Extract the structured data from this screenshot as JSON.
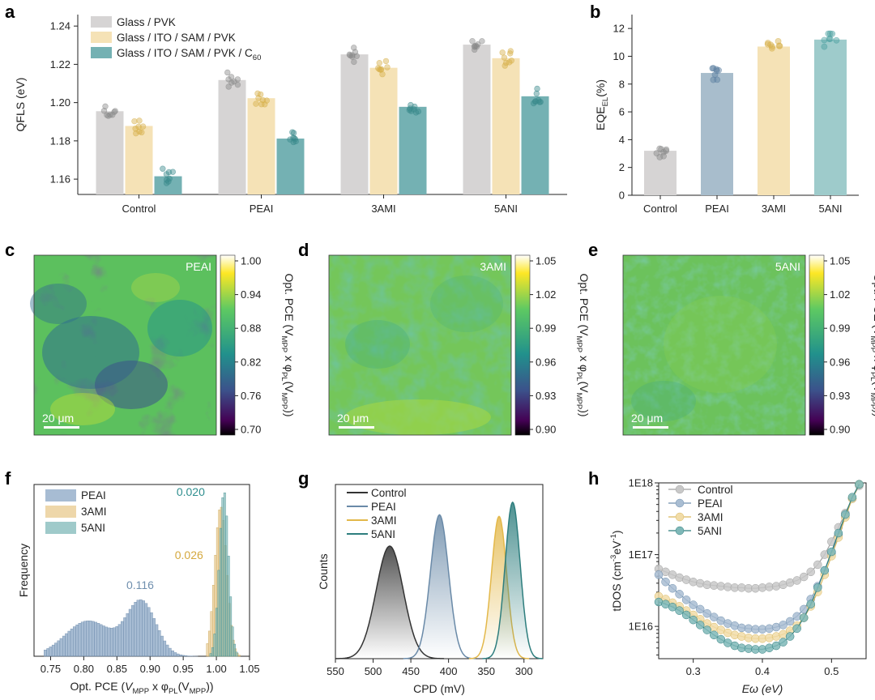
{
  "panel_letters": [
    "a",
    "b",
    "c",
    "d",
    "e",
    "f",
    "g",
    "h"
  ],
  "chart_data": [
    {
      "id": "a",
      "type": "bar",
      "categories": [
        "Control",
        "PEAI",
        "3AMI",
        "5ANI"
      ],
      "series": [
        {
          "name": "Glass / PVK",
          "values": [
            1.1955,
            1.2118,
            1.2252,
            1.2303
          ]
        },
        {
          "name": "Glass / ITO / SAM / PVK",
          "values": [
            1.1878,
            1.2023,
            1.2182,
            1.2232
          ]
        },
        {
          "name": "Glass / ITO / SAM / PVK / C",
          "name_sub": "60",
          "values": [
            1.1615,
            1.1812,
            1.1978,
            1.2033
          ]
        }
      ],
      "ylabel": "QFLS (eV)",
      "ylim": [
        1.152,
        1.246
      ],
      "yticks": [
        "1.16",
        "1.18",
        "1.20",
        "1.22",
        "1.24"
      ],
      "colors": [
        "#d6d4d4",
        "#f5e2b6",
        "#74b1b3"
      ],
      "dot_colors": [
        "#8a8a8a",
        "#d6b04a",
        "#3a8a8c"
      ],
      "legend_position": "top-left"
    },
    {
      "id": "b",
      "type": "bar",
      "categories": [
        "Control",
        "PEAI",
        "3AMI",
        "5ANI"
      ],
      "values": [
        3.2,
        8.8,
        10.7,
        11.2
      ],
      "ylabel": "EQE",
      "ylabel_sub": "EL",
      "ylabel_suffix": "(%)",
      "ylim": [
        0,
        13
      ],
      "yticks": [
        "0",
        "2",
        "4",
        "6",
        "8",
        "10",
        "12"
      ],
      "colors": [
        "#d6d4d4",
        "#a8bdcc",
        "#f5e2b6",
        "#9ecbcb"
      ],
      "dot_colors": [
        "#8a8a8a",
        "#5a7fa0",
        "#d6b04a",
        "#4aa0a0"
      ]
    },
    {
      "id": "c",
      "type": "heatmap",
      "label": "PEAI",
      "scalebar": "20 μm",
      "colorbar_ticks": [
        "1.00",
        "0.94",
        "0.88",
        "0.82",
        "0.76",
        "0.70"
      ],
      "colorbar_label": "Opt. PCE (V",
      "colorbar_label_sub1": "MPP",
      "colorbar_label_mid": " x φ",
      "colorbar_label_sub2": "PL",
      "colorbar_label_mid2": "(V",
      "colorbar_label_sub3": "MPP",
      "colorbar_label_end": "))"
    },
    {
      "id": "d",
      "type": "heatmap",
      "label": "3AMI",
      "scalebar": "20 μm",
      "colorbar_ticks": [
        "1.05",
        "1.02",
        "0.99",
        "0.96",
        "0.93",
        "0.90"
      ],
      "colorbar_label": "Opt. PCE (V",
      "colorbar_label_sub1": "MPP",
      "colorbar_label_mid": " x φ",
      "colorbar_label_sub2": "PL",
      "colorbar_label_mid2": "(V",
      "colorbar_label_sub3": "MPP",
      "colorbar_label_end": "))"
    },
    {
      "id": "e",
      "type": "heatmap",
      "label": "5ANI",
      "scalebar": "20 μm",
      "colorbar_ticks": [
        "1.05",
        "1.02",
        "0.99",
        "0.96",
        "0.93",
        "0.90"
      ],
      "colorbar_label": "Opt. PCE (V",
      "colorbar_label_sub1": "MPP",
      "colorbar_label_mid": " x φ",
      "colorbar_label_sub2": "PL",
      "colorbar_label_mid2": "(V",
      "colorbar_label_sub3": "MPP",
      "colorbar_label_end": "))"
    },
    {
      "id": "f",
      "type": "bar",
      "xlabel_pre": "Opt. PCE (",
      "xlabel_v": "V",
      "xlabel_sub1": "MPP",
      "xlabel_mid": " x φ",
      "xlabel_sub2": "PL",
      "xlabel_mid2": "(V",
      "xlabel_sub3": "MPP",
      "xlabel_end": "))",
      "ylabel": "Frequency",
      "xlim": [
        0.725,
        1.05
      ],
      "xticks": [
        "0.75",
        "0.80",
        "0.85",
        "0.90",
        "0.95",
        "1.00",
        "1.05"
      ],
      "series": [
        {
          "name": "PEAI",
          "color": "#8aa6c4",
          "annotation": "0.116"
        },
        {
          "name": "3AMI",
          "color": "#e8c98e",
          "annotation": "0.026"
        },
        {
          "name": "5ANI",
          "color": "#7fb8b8",
          "annotation": "0.020"
        }
      ],
      "legend_position": "top-left"
    },
    {
      "id": "g",
      "type": "area",
      "xlabel": "CPD (mV)",
      "ylabel": "Counts",
      "xlim": [
        550,
        275
      ],
      "xticks": [
        "550",
        "500",
        "450",
        "400",
        "350",
        "300"
      ],
      "series": [
        {
          "name": "Control",
          "peak": 478,
          "sigma": 18,
          "height": 0.72,
          "color": "#333333"
        },
        {
          "name": "PEAI",
          "peak": 412,
          "sigma": 12,
          "height": 0.92,
          "color": "#6a8aa8"
        },
        {
          "name": "3AMI",
          "peak": 333,
          "sigma": 10,
          "height": 0.91,
          "color": "#e3b84a"
        },
        {
          "name": "5ANI",
          "peak": 315,
          "sigma": 10,
          "height": 1.0,
          "color": "#2e7e7e"
        }
      ],
      "legend_position": "top-left"
    },
    {
      "id": "h",
      "type": "scatter",
      "xlabel": "Eω (eV)",
      "ylabel": "tDOS (cm",
      "ylabel_sup1": "-3",
      "ylabel_mid": "eV",
      "ylabel_sup2": "-1",
      "ylabel_end": ")",
      "xlim": [
        0.25,
        0.55
      ],
      "ylim_log": [
        15.55,
        18.0
      ],
      "xticks": [
        "0.3",
        "0.4",
        "0.5"
      ],
      "yticks": [
        "1E18",
        "1E17",
        "1E16"
      ],
      "x": [
        0.25,
        0.26,
        0.27,
        0.28,
        0.29,
        0.3,
        0.31,
        0.32,
        0.33,
        0.34,
        0.35,
        0.36,
        0.37,
        0.38,
        0.39,
        0.4,
        0.41,
        0.42,
        0.43,
        0.44,
        0.45,
        0.46,
        0.47,
        0.48,
        0.49,
        0.5,
        0.51,
        0.52,
        0.53,
        0.54
      ],
      "series": [
        {
          "name": "Control",
          "color": "#c8c8c8",
          "edge": "#a0a0a0",
          "y": [
            16.8,
            16.76,
            16.72,
            16.68,
            16.65,
            16.62,
            16.6,
            16.58,
            16.57,
            16.56,
            16.55,
            16.54,
            16.54,
            16.53,
            16.53,
            16.54,
            16.55,
            16.56,
            16.58,
            16.61,
            16.64,
            16.69,
            16.76,
            16.86,
            17.0,
            17.18,
            17.38,
            17.58,
            17.78,
            17.96
          ]
        },
        {
          "name": "PEAI",
          "color": "#a9bdd2",
          "edge": "#6f8fae",
          "y": [
            16.72,
            16.62,
            16.53,
            16.45,
            16.37,
            16.3,
            16.24,
            16.18,
            16.13,
            16.08,
            16.04,
            16.01,
            15.98,
            15.97,
            15.96,
            15.96,
            15.97,
            15.99,
            16.02,
            16.07,
            16.14,
            16.24,
            16.38,
            16.56,
            16.78,
            17.02,
            17.28,
            17.54,
            17.78,
            17.98
          ]
        },
        {
          "name": "3AMI",
          "color": "#f1dca8",
          "edge": "#d9b85e",
          "y": [
            16.42,
            16.38,
            16.33,
            16.28,
            16.22,
            16.16,
            16.1,
            16.04,
            15.99,
            15.95,
            15.91,
            15.88,
            15.86,
            15.84,
            15.83,
            15.83,
            15.84,
            15.86,
            15.89,
            15.94,
            16.01,
            16.12,
            16.28,
            16.48,
            16.72,
            16.98,
            17.24,
            17.52,
            17.78,
            17.98
          ]
        },
        {
          "name": "5ANI",
          "color": "#7fb8b8",
          "edge": "#2e7e7e",
          "y": [
            16.34,
            16.31,
            16.27,
            16.22,
            16.16,
            16.09,
            16.02,
            15.95,
            15.88,
            15.82,
            15.77,
            15.73,
            15.7,
            15.69,
            15.68,
            15.68,
            15.7,
            15.73,
            15.78,
            15.86,
            15.97,
            16.12,
            16.31,
            16.54,
            16.78,
            17.04,
            17.3,
            17.56,
            17.8,
            17.98
          ]
        }
      ],
      "legend_position": "top-left"
    }
  ]
}
